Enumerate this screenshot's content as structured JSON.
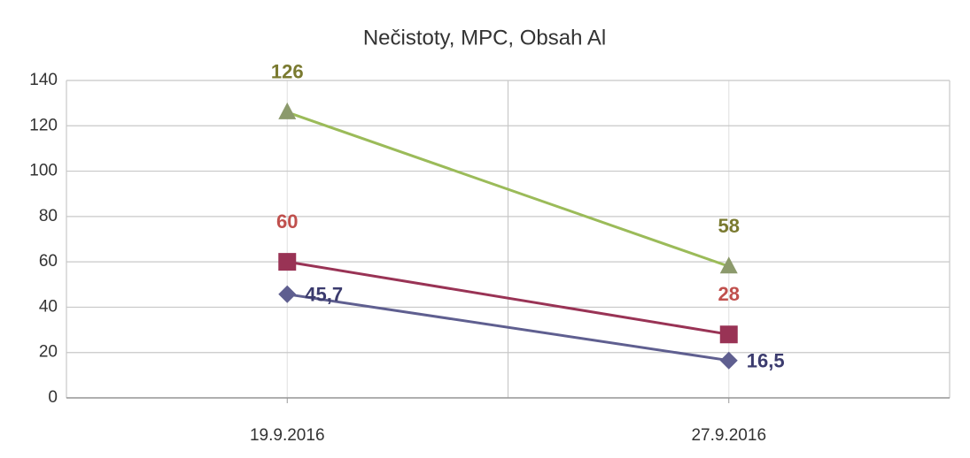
{
  "chart_data": {
    "type": "line",
    "title": "Nečistoty, MPC, Obsah Al",
    "categories": [
      "19.9.2016",
      "27.9.2016"
    ],
    "series": [
      {
        "color": "#5f5f90",
        "marker": "diamond",
        "label_color": "#3b3b6e",
        "values": [
          45.7,
          16.5
        ],
        "value_labels": [
          "45,7",
          "16,5"
        ]
      },
      {
        "color": "#993355",
        "marker": "square",
        "label_color": "#c0504d",
        "values": [
          60,
          28
        ]
      },
      {
        "color": "#9bbb59",
        "marker": "triangle",
        "marker_color": "#8c9a6c",
        "label_color": "#7a7a30",
        "values": [
          126,
          58
        ]
      }
    ],
    "ylim": [
      0,
      140
    ],
    "yticks": [
      0,
      20,
      40,
      60,
      80,
      100,
      120,
      140
    ],
    "grid": true
  }
}
